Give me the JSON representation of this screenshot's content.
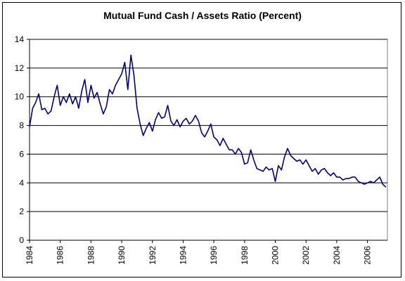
{
  "chart_data": {
    "type": "line",
    "title": "Mutual Fund Cash / Assets Ratio (Percent)",
    "xlabel": "",
    "ylabel": "",
    "xlim": [
      1984,
      2007.3
    ],
    "ylim": [
      0,
      14
    ],
    "x_ticks": [
      "1984",
      "1986",
      "1988",
      "1990",
      "1992",
      "1994",
      "1996",
      "1998",
      "2000",
      "2002",
      "2004",
      "2006"
    ],
    "y_ticks": [
      "0",
      "2",
      "4",
      "6",
      "8",
      "10",
      "12",
      "14"
    ],
    "grid": "horizontal",
    "legend": "none",
    "line_color": "#000080",
    "series": [
      {
        "x": [
          1984.0,
          1984.2,
          1984.4,
          1984.6,
          1984.8,
          1985.0,
          1985.2,
          1985.4,
          1985.6,
          1985.8,
          1986.0,
          1986.2,
          1986.4,
          1986.6,
          1986.8,
          1987.0,
          1987.2,
          1987.4,
          1987.6,
          1987.8,
          1988.0,
          1988.2,
          1988.4,
          1988.6,
          1988.8,
          1989.0,
          1989.2,
          1989.4,
          1989.6,
          1989.8,
          1990.0,
          1990.2,
          1990.4,
          1990.6,
          1990.8,
          1991.0,
          1991.2,
          1991.4,
          1991.6,
          1991.8,
          1992.0,
          1992.2,
          1992.4,
          1992.6,
          1992.8,
          1993.0,
          1993.2,
          1993.4,
          1993.6,
          1993.8,
          1994.0,
          1994.2,
          1994.4,
          1994.6,
          1994.8,
          1995.0,
          1995.2,
          1995.4,
          1995.6,
          1995.8,
          1996.0,
          1996.2,
          1996.4,
          1996.6,
          1996.8,
          1997.0,
          1997.2,
          1997.4,
          1997.6,
          1997.8,
          1998.0,
          1998.2,
          1998.4,
          1998.6,
          1998.8,
          1999.0,
          1999.2,
          1999.4,
          1999.6,
          1999.8,
          2000.0,
          2000.2,
          2000.4,
          2000.6,
          2000.8,
          2001.0,
          2001.2,
          2001.4,
          2001.6,
          2001.8,
          2002.0,
          2002.2,
          2002.4,
          2002.6,
          2002.8,
          2003.0,
          2003.2,
          2003.4,
          2003.6,
          2003.8,
          2004.0,
          2004.2,
          2004.4,
          2004.6,
          2004.8,
          2005.0,
          2005.2,
          2005.4,
          2005.6,
          2005.8,
          2006.0,
          2006.2,
          2006.4,
          2006.6,
          2006.8,
          2007.0,
          2007.2
        ],
        "y": [
          7.9,
          9.2,
          9.6,
          10.2,
          9.1,
          9.2,
          8.8,
          9.0,
          10.0,
          10.8,
          9.4,
          10.0,
          9.6,
          10.2,
          9.5,
          10.0,
          9.2,
          10.4,
          11.2,
          9.6,
          10.8,
          9.9,
          10.3,
          9.5,
          8.8,
          9.3,
          10.5,
          10.2,
          10.8,
          11.2,
          11.6,
          12.4,
          10.5,
          12.9,
          11.5,
          9.2,
          8.1,
          7.3,
          7.8,
          8.2,
          7.6,
          8.4,
          8.9,
          8.5,
          8.6,
          9.4,
          8.3,
          8.0,
          8.4,
          7.9,
          8.3,
          8.5,
          8.1,
          8.3,
          8.7,
          8.3,
          7.5,
          7.2,
          7.6,
          8.1,
          7.2,
          7.0,
          6.6,
          7.1,
          6.7,
          6.3,
          6.3,
          6.0,
          6.4,
          6.1,
          5.3,
          5.4,
          6.3,
          5.6,
          5.0,
          4.9,
          4.8,
          5.1,
          4.9,
          5.0,
          4.1,
          5.2,
          4.9,
          5.8,
          6.4,
          5.9,
          5.7,
          5.5,
          5.6,
          5.3,
          5.6,
          5.2,
          4.8,
          5.0,
          4.6,
          4.9,
          5.0,
          4.7,
          4.5,
          4.7,
          4.4,
          4.4,
          4.2,
          4.3,
          4.3,
          4.4,
          4.4,
          4.1,
          4.0,
          3.9,
          4.0,
          4.1,
          4.0,
          4.2,
          4.4,
          3.9,
          3.7
        ]
      }
    ]
  }
}
